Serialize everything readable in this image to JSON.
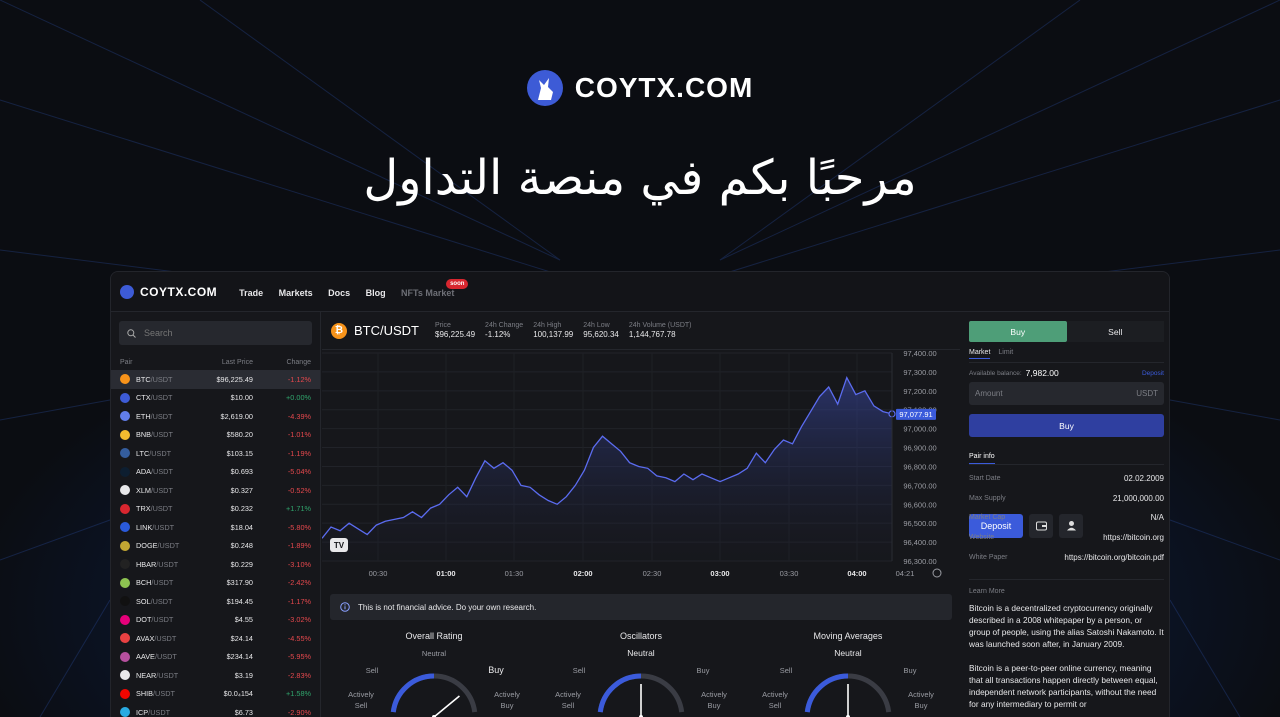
{
  "hero": {
    "brand": "COYTX.COM",
    "title": "مرحبًا بكم في منصة التداول"
  },
  "topbar": {
    "brand": "COYTX.COM",
    "nav": [
      "Trade",
      "Markets",
      "Docs",
      "Blog"
    ],
    "nft_label": "NFTs Market",
    "soon_badge": "soon",
    "deposit_label": "Deposit"
  },
  "search": {
    "placeholder": "Search"
  },
  "pairs_header": {
    "pair": "Pair",
    "last_price": "Last Price",
    "change": "Change"
  },
  "pairs": [
    {
      "base": "BTC",
      "quote": "/USDT",
      "price": "$96,225.49",
      "change": "-1.12%",
      "dir": "neg",
      "color": "#f7931a"
    },
    {
      "base": "CTX",
      "quote": "/USDT",
      "price": "$10.00",
      "change": "+0.00%",
      "dir": "pos",
      "color": "#3d5bd6"
    },
    {
      "base": "ETH",
      "quote": "/USDT",
      "price": "$2,619.00",
      "change": "-4.39%",
      "dir": "neg",
      "color": "#627eea"
    },
    {
      "base": "BNB",
      "quote": "/USDT",
      "price": "$580.20",
      "change": "-1.01%",
      "dir": "neg",
      "color": "#f3ba2f"
    },
    {
      "base": "LTC",
      "quote": "/USDT",
      "price": "$103.15",
      "change": "-1.19%",
      "dir": "neg",
      "color": "#345d9d"
    },
    {
      "base": "ADA",
      "quote": "/USDT",
      "price": "$0.693",
      "change": "-5.04%",
      "dir": "neg",
      "color": "#0d1e30"
    },
    {
      "base": "XLM",
      "quote": "/USDT",
      "price": "$0.327",
      "change": "-0.52%",
      "dir": "neg",
      "color": "#e8e8ea"
    },
    {
      "base": "TRX",
      "quote": "/USDT",
      "price": "$0.232",
      "change": "+1.71%",
      "dir": "pos",
      "color": "#d8262f"
    },
    {
      "base": "LINK",
      "quote": "/USDT",
      "price": "$18.04",
      "change": "-5.80%",
      "dir": "neg",
      "color": "#2a5ada"
    },
    {
      "base": "DOGE",
      "quote": "/USDT",
      "price": "$0.248",
      "change": "-1.89%",
      "dir": "neg",
      "color": "#c2a633"
    },
    {
      "base": "HBAR",
      "quote": "/USDT",
      "price": "$0.229",
      "change": "-3.10%",
      "dir": "neg",
      "color": "#222222"
    },
    {
      "base": "BCH",
      "quote": "/USDT",
      "price": "$317.90",
      "change": "-2.42%",
      "dir": "neg",
      "color": "#8dc351"
    },
    {
      "base": "SOL",
      "quote": "/USDT",
      "price": "$194.45",
      "change": "-1.17%",
      "dir": "neg",
      "color": "#111111"
    },
    {
      "base": "DOT",
      "quote": "/USDT",
      "price": "$4.55",
      "change": "-3.02%",
      "dir": "neg",
      "color": "#e6007a"
    },
    {
      "base": "AVAX",
      "quote": "/USDT",
      "price": "$24.14",
      "change": "-4.55%",
      "dir": "neg",
      "color": "#e84142"
    },
    {
      "base": "AAVE",
      "quote": "/USDT",
      "price": "$234.14",
      "change": "-5.95%",
      "dir": "neg",
      "color": "#b6509e"
    },
    {
      "base": "NEAR",
      "quote": "/USDT",
      "price": "$3.19",
      "change": "-2.83%",
      "dir": "neg",
      "color": "#e8e8ea"
    },
    {
      "base": "SHIB",
      "quote": "/USDT",
      "price": "$0.0₄154",
      "change": "+1.58%",
      "dir": "pos",
      "color": "#f00500"
    },
    {
      "base": "ICP",
      "quote": "/USDT",
      "price": "$6.73",
      "change": "-2.90%",
      "dir": "neg",
      "color": "#29abe2"
    }
  ],
  "ticker": {
    "pair": "BTC/USDT",
    "stats": [
      {
        "k": "Price",
        "v": "$96,225.49"
      },
      {
        "k": "24h Change",
        "v": "-1.12%"
      },
      {
        "k": "24h High",
        "v": "100,137.99"
      },
      {
        "k": "24h Low",
        "v": "95,620.34"
      },
      {
        "k": "24h Volume (USDT)",
        "v": "1,144,767.78"
      }
    ]
  },
  "chart_data": {
    "type": "area",
    "x_ticks": [
      "00:30",
      "01:00",
      "01:30",
      "02:00",
      "02:30",
      "03:00",
      "03:30",
      "04:00",
      "04:21"
    ],
    "y_ticks": [
      "97,400.00",
      "97,300.00",
      "97,200.00",
      "97,100.00",
      "97,000.00",
      "96,900.00",
      "96,800.00",
      "96,700.00",
      "96,600.00",
      "96,500.00",
      "96,400.00",
      "96,300.00"
    ],
    "ylim": [
      96300,
      97400
    ],
    "last_label": "97,077.91",
    "values": [
      96420,
      96480,
      96460,
      96500,
      96470,
      96440,
      96490,
      96510,
      96520,
      96530,
      96560,
      96530,
      96580,
      96600,
      96650,
      96690,
      96640,
      96740,
      96830,
      96790,
      96820,
      96780,
      96700,
      96690,
      96650,
      96620,
      96600,
      96640,
      96700,
      96780,
      96900,
      96960,
      96920,
      96880,
      96820,
      96800,
      96790,
      96750,
      96740,
      96720,
      96760,
      96730,
      96760,
      96740,
      96720,
      96740,
      96760,
      96790,
      96870,
      96820,
      96890,
      96940,
      96920,
      97010,
      97090,
      97170,
      97220,
      97130,
      97270,
      97180,
      97200,
      97120,
      97090,
      97078
    ],
    "line_color": "#5b6cf0"
  },
  "notice": "This is not financial advice. Do your own research.",
  "gauges": [
    {
      "title": "Overall Rating",
      "neutral": "Neutral",
      "sell": "Sell",
      "buy": "Buy",
      "asell": "Actively\nSell",
      "abuy": "Actively\nBuy",
      "value": 0.78
    },
    {
      "title": "Oscillators",
      "neutral": "Neutral",
      "sell": "Sell",
      "buy": "Buy",
      "asell": "Actively\nSell",
      "abuy": "Actively\nBuy",
      "value": 0.5
    },
    {
      "title": "Moving Averages",
      "neutral": "Neutral",
      "sell": "Sell",
      "buy": "Buy",
      "asell": "Actively\nSell",
      "abuy": "Actively\nBuy",
      "value": 0.5
    }
  ],
  "trade": {
    "buy_tab": "Buy",
    "sell_tab": "Sell",
    "market_tab": "Market",
    "limit_tab": "Limit",
    "balance_label": "Available balance:",
    "balance": "7,982.00",
    "deposit_link": "Deposit",
    "amount_placeholder": "Amount",
    "amount_unit": "USDT",
    "buy_button": "Buy"
  },
  "pair_info": {
    "title": "Pair info",
    "rows": [
      {
        "k": "Start Date",
        "v": "02.02.2009"
      },
      {
        "k": "Max Supply",
        "v": "21,000,000.00"
      },
      {
        "k": "Market Cap",
        "v": "N/A"
      },
      {
        "k": "Website",
        "v": "https://bitcoin.org"
      },
      {
        "k": "White Paper",
        "v": "https://bitcoin.org/bitcoin.pdf"
      }
    ],
    "learn_more": "Learn More",
    "desc1": "Bitcoin is a decentralized cryptocurrency originally described in a 2008 whitepaper by a person, or group of people, using the alias Satoshi Nakamoto. It was launched soon after, in January 2009.",
    "desc2": "Bitcoin is a peer-to-peer online currency, meaning that all transactions happen directly between equal, independent network participants, without the need for any intermediary to permit or"
  }
}
